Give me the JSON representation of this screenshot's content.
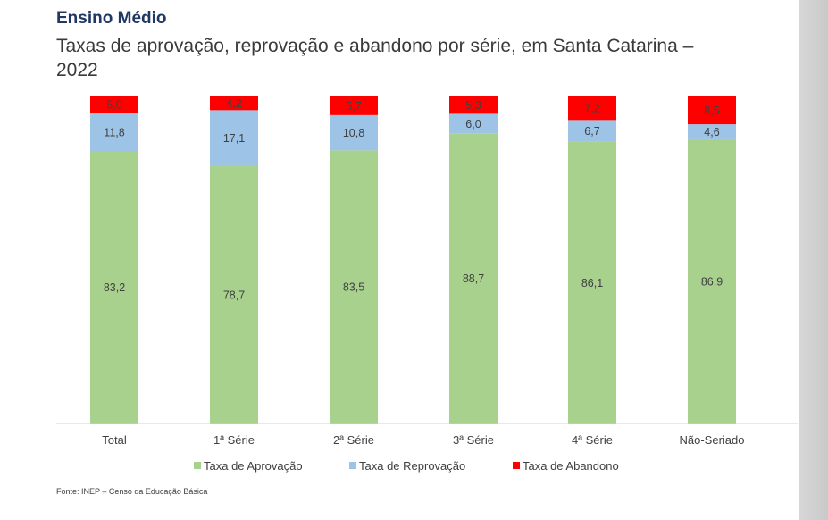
{
  "header": {
    "title": "Ensino Médio",
    "subtitle": "Taxas de aprovação, reprovação e abandono por série, em Santa Catarina – 2022"
  },
  "source": "Fonte: INEP – Censo da Educação Básica",
  "chart_data": {
    "type": "bar",
    "stacked": true,
    "categories": [
      "Total",
      "1ª Série",
      "2ª Série",
      "3ª Série",
      "4ª Série",
      "Não-Seriado"
    ],
    "series": [
      {
        "name": "Taxa de Aprovação",
        "color": "#a9d18e",
        "values": [
          83.2,
          78.7,
          83.5,
          88.7,
          86.1,
          86.9
        ],
        "labels": [
          "83,2",
          "78,7",
          "83,5",
          "88,7",
          "86,1",
          "86,9"
        ]
      },
      {
        "name": "Taxa de Reprovação",
        "color": "#9dc3e6",
        "values": [
          11.8,
          17.1,
          10.8,
          6.0,
          6.7,
          4.6
        ],
        "labels": [
          "11,8",
          "17,1",
          "10,8",
          "6,0",
          "6,7",
          "4,6"
        ]
      },
      {
        "name": "Taxa de Abandono",
        "color": "#ff0000",
        "values": [
          5.0,
          4.2,
          5.7,
          5.3,
          7.2,
          8.5
        ],
        "labels": [
          "5,0",
          "4,2",
          "5,7",
          "5,3",
          "7,2",
          "8,5"
        ]
      }
    ],
    "ylim": [
      0,
      100
    ],
    "grid": false,
    "legend_position": "bottom"
  }
}
